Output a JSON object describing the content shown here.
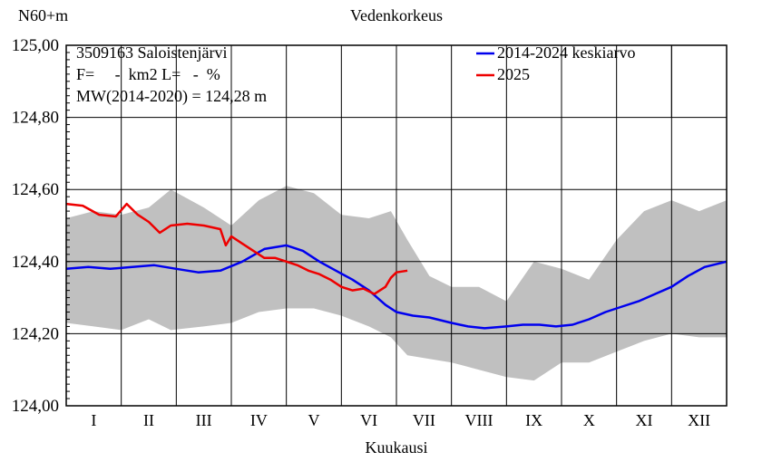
{
  "chart_data": {
    "type": "line",
    "title": "Vedenkorkeus",
    "ylabel": "N60+m",
    "xlabel": "Kuukausi",
    "ylim": [
      124.0,
      125.0
    ],
    "y_ticks": [
      "124,00",
      "124,20",
      "124,40",
      "124,60",
      "124,80",
      "125,00"
    ],
    "y_tick_values": [
      124.0,
      124.2,
      124.4,
      124.6,
      124.8,
      125.0
    ],
    "xlim": [
      0,
      12
    ],
    "months": [
      "I",
      "II",
      "III",
      "IV",
      "V",
      "VI",
      "VII",
      "VIII",
      "IX",
      "X",
      "XI",
      "XII"
    ],
    "info_lines": [
      "3509163 Saloistenjärvi",
      "F=     -  km2 L=   -  %",
      "MW(2014-2020) = 124,28 m"
    ],
    "legend_position": "top-right",
    "band": {
      "color": "#c0c0c0",
      "x": [
        0.0,
        0.5,
        1.0,
        1.5,
        1.9,
        2.5,
        3.0,
        3.5,
        4.0,
        4.5,
        5.0,
        5.5,
        5.9,
        6.2,
        6.6,
        7.0,
        7.5,
        8.0,
        8.5,
        9.0,
        9.5,
        10.0,
        10.5,
        11.0,
        11.5,
        12.0
      ],
      "upper": [
        124.52,
        124.54,
        124.53,
        124.55,
        124.6,
        124.55,
        124.5,
        124.57,
        124.61,
        124.59,
        124.53,
        124.52,
        124.54,
        124.46,
        124.36,
        124.33,
        124.33,
        124.29,
        124.4,
        124.38,
        124.35,
        124.46,
        124.54,
        124.57,
        124.54,
        124.57
      ],
      "lower": [
        124.23,
        124.22,
        124.21,
        124.24,
        124.21,
        124.22,
        124.23,
        124.26,
        124.27,
        124.27,
        124.25,
        124.22,
        124.19,
        124.14,
        124.13,
        124.12,
        124.1,
        124.08,
        124.07,
        124.12,
        124.12,
        124.15,
        124.18,
        124.2,
        124.19,
        124.19
      ]
    },
    "series": [
      {
        "name": "2014-2024 keskiarvo",
        "color": "#0000ee",
        "x": [
          0.0,
          0.4,
          0.8,
          1.2,
          1.6,
          2.0,
          2.4,
          2.8,
          3.2,
          3.6,
          4.0,
          4.3,
          4.6,
          4.9,
          5.2,
          5.5,
          5.8,
          6.0,
          6.3,
          6.6,
          7.0,
          7.3,
          7.6,
          8.0,
          8.3,
          8.6,
          8.9,
          9.2,
          9.5,
          9.8,
          10.1,
          10.4,
          10.7,
          11.0,
          11.3,
          11.6,
          12.0
        ],
        "y": [
          124.38,
          124.385,
          124.38,
          124.385,
          124.39,
          124.38,
          124.37,
          124.375,
          124.4,
          124.435,
          124.445,
          124.43,
          124.4,
          124.375,
          124.35,
          124.32,
          124.28,
          124.26,
          124.25,
          124.245,
          124.23,
          124.22,
          124.215,
          124.22,
          124.225,
          124.225,
          124.22,
          124.225,
          124.24,
          124.26,
          124.275,
          124.29,
          124.31,
          124.33,
          124.36,
          124.385,
          124.4
        ]
      },
      {
        "name": "2025",
        "color": "#ee0000",
        "x": [
          0.0,
          0.3,
          0.6,
          0.9,
          1.1,
          1.3,
          1.5,
          1.7,
          1.9,
          2.2,
          2.5,
          2.8,
          2.9,
          3.0,
          3.2,
          3.4,
          3.6,
          3.8,
          4.0,
          4.2,
          4.4,
          4.6,
          4.8,
          5.0,
          5.2,
          5.4,
          5.6,
          5.8,
          5.9,
          6.0,
          6.2
        ],
        "y": [
          124.56,
          124.555,
          124.53,
          124.525,
          124.56,
          124.53,
          124.51,
          124.48,
          124.5,
          124.505,
          124.5,
          124.49,
          124.445,
          124.47,
          124.45,
          124.43,
          124.41,
          124.41,
          124.4,
          124.39,
          124.375,
          124.365,
          124.35,
          124.33,
          124.32,
          124.325,
          124.31,
          124.33,
          124.355,
          124.37,
          124.375
        ]
      }
    ]
  }
}
